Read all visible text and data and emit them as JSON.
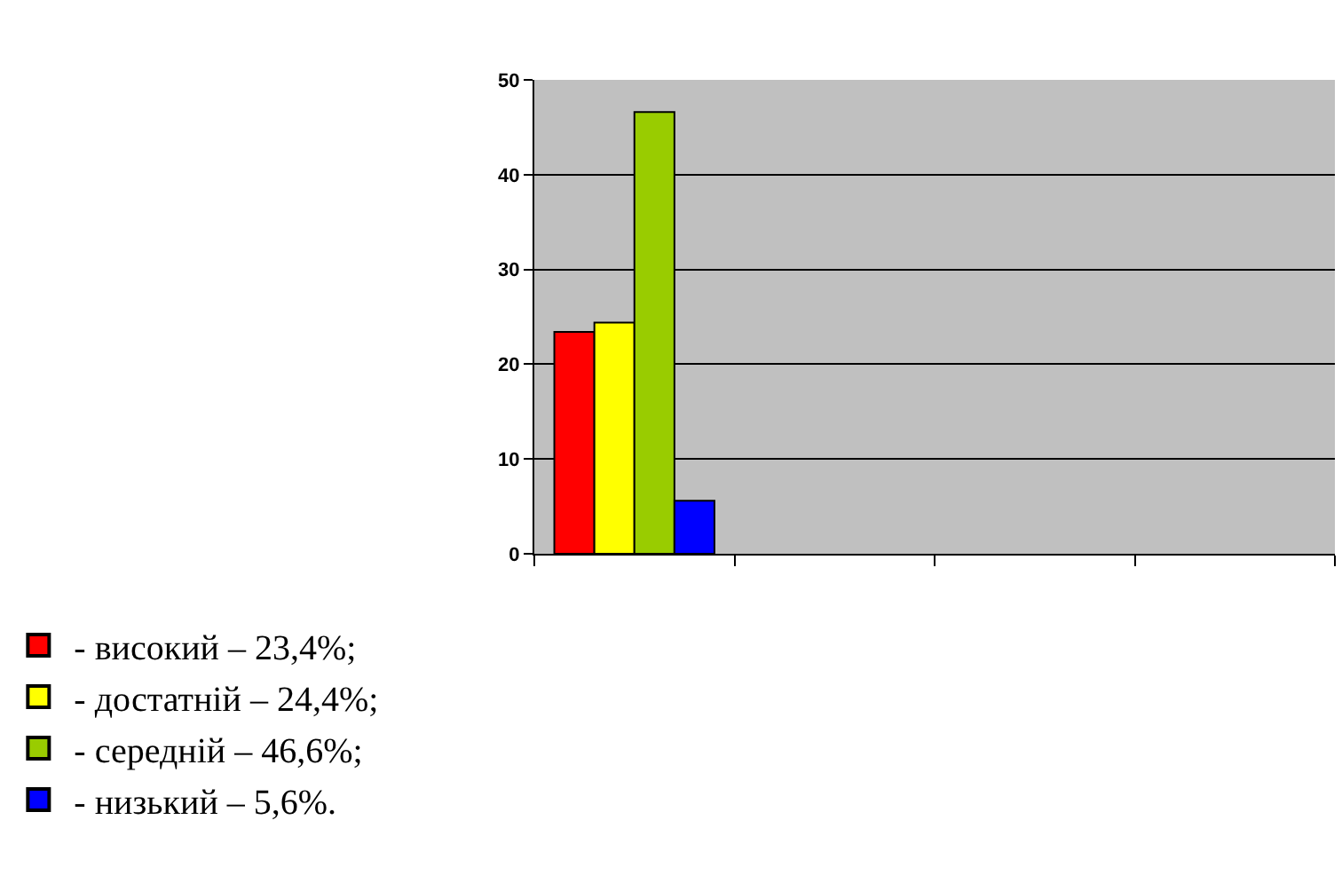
{
  "chart_data": {
    "type": "bar",
    "categories": [
      null,
      null,
      null,
      null
    ],
    "series": [
      {
        "name": "- високий – 23,4%;",
        "color": "#ff0000",
        "values": [
          23.4,
          null,
          null,
          null
        ]
      },
      {
        "name": "- достатній – 24,4%;",
        "color": "#ffff00",
        "values": [
          24.4,
          null,
          null,
          null
        ]
      },
      {
        "name": "- середній – 46,6%;",
        "color": "#99cc00",
        "values": [
          46.6,
          null,
          null,
          null
        ]
      },
      {
        "name": "- низький – 5,6%.",
        "color": "#0000ff",
        "values": [
          5.6,
          null,
          null,
          null
        ]
      }
    ],
    "ylim": [
      0,
      50
    ],
    "yticks": [
      0,
      10,
      20,
      30,
      40,
      50
    ],
    "grid": "y",
    "legend": "bottom left"
  }
}
